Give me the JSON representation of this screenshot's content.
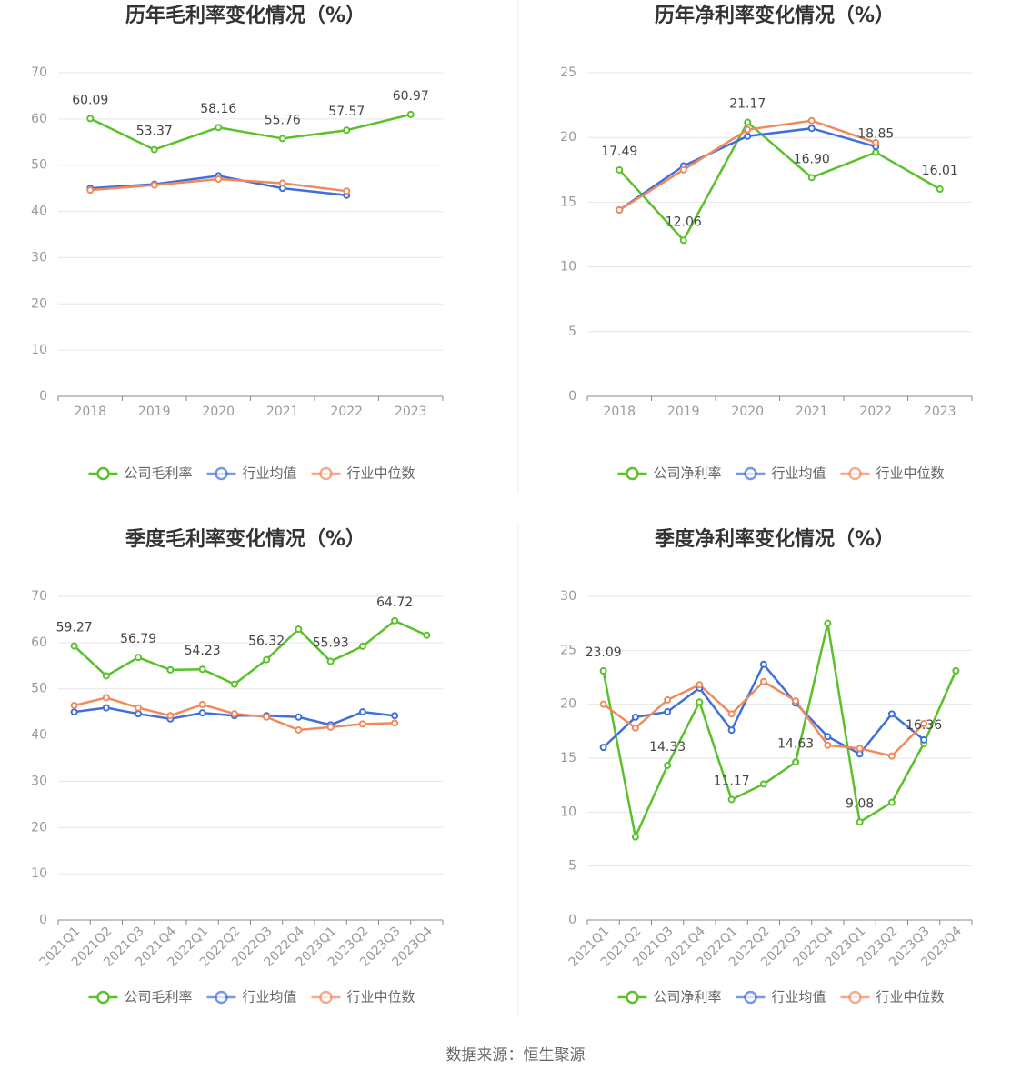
{
  "chart_data": [
    {
      "type": "line",
      "title": "历年毛利率变化情况（%）",
      "categories": [
        "2018",
        "2019",
        "2020",
        "2021",
        "2022",
        "2023"
      ],
      "ylim": [
        0,
        70
      ],
      "yticks": [
        0,
        10,
        20,
        30,
        40,
        50,
        60,
        70
      ],
      "grid": true,
      "series": [
        {
          "name": "公司毛利率",
          "color": "#5ac12b",
          "values": [
            60.09,
            53.37,
            58.16,
            55.76,
            57.57,
            60.97
          ]
        },
        {
          "name": "行业均值",
          "color": "#3e6fdc",
          "values": [
            45.0,
            45.9,
            47.7,
            45.0,
            43.5,
            null
          ]
        },
        {
          "name": "行业中位数",
          "color": "#f08a5d",
          "values": [
            44.6,
            45.7,
            47.0,
            46.1,
            44.4,
            null
          ]
        }
      ]
    },
    {
      "type": "line",
      "title": "历年净利率变化情况（%）",
      "categories": [
        "2018",
        "2019",
        "2020",
        "2021",
        "2022",
        "2023"
      ],
      "ylim": [
        0,
        25
      ],
      "yticks": [
        0,
        5,
        10,
        15,
        20,
        25
      ],
      "grid": true,
      "series": [
        {
          "name": "公司净利率",
          "color": "#5ac12b",
          "values": [
            17.49,
            12.06,
            21.17,
            16.9,
            18.85,
            16.01
          ],
          "value_labels": [
            "17.49",
            "12.06",
            "21.17",
            "16.90",
            "18.85",
            "16.01"
          ]
        },
        {
          "name": "行业均值",
          "color": "#3e6fdc",
          "values": [
            14.4,
            17.8,
            20.1,
            20.7,
            19.3,
            null
          ]
        },
        {
          "name": "行业中位数",
          "color": "#f08a5d",
          "values": [
            14.4,
            17.5,
            20.6,
            21.3,
            19.6,
            null
          ]
        }
      ]
    },
    {
      "type": "line",
      "title": "季度毛利率变化情况（%）",
      "categories": [
        "2021Q1",
        "2021Q2",
        "2021Q3",
        "2021Q4",
        "2022Q1",
        "2022Q2",
        "2022Q3",
        "2022Q4",
        "2023Q1",
        "2023Q2",
        "2023Q3",
        "2023Q4"
      ],
      "ylim": [
        0,
        70
      ],
      "yticks": [
        0,
        10,
        20,
        30,
        40,
        50,
        60,
        70
      ],
      "grid": true,
      "series": [
        {
          "name": "公司毛利率",
          "color": "#5ac12b",
          "values": [
            59.27,
            52.8,
            56.79,
            54.1,
            54.23,
            51.0,
            56.32,
            62.9,
            55.93,
            59.2,
            64.72,
            61.6
          ],
          "value_labels": [
            "59.27",
            null,
            "56.79",
            null,
            "54.23",
            null,
            "56.32",
            null,
            "55.93",
            null,
            "64.72",
            null
          ]
        },
        {
          "name": "行业均值",
          "color": "#3e6fdc",
          "values": [
            45.0,
            45.9,
            44.6,
            43.5,
            44.8,
            44.2,
            44.2,
            43.9,
            42.2,
            45.0,
            44.2,
            null
          ]
        },
        {
          "name": "行业中位数",
          "color": "#f08a5d",
          "values": [
            46.4,
            48.1,
            45.9,
            44.2,
            46.6,
            44.6,
            43.9,
            41.1,
            41.7,
            42.4,
            42.6,
            null
          ]
        }
      ]
    },
    {
      "type": "line",
      "title": "季度净利率变化情况（%）",
      "categories": [
        "2021Q1",
        "2021Q2",
        "2021Q3",
        "2021Q4",
        "2022Q1",
        "2022Q2",
        "2022Q3",
        "2022Q4",
        "2023Q1",
        "2023Q2",
        "2023Q3",
        "2023Q4"
      ],
      "ylim": [
        0,
        30
      ],
      "yticks": [
        0,
        5,
        10,
        15,
        20,
        25,
        30
      ],
      "grid": true,
      "series": [
        {
          "name": "公司净利率",
          "color": "#5ac12b",
          "values": [
            23.09,
            7.7,
            14.33,
            20.2,
            11.17,
            12.6,
            14.63,
            27.5,
            9.08,
            10.9,
            16.36,
            23.1
          ],
          "value_labels": [
            "23.09",
            null,
            "14.33",
            null,
            "11.17",
            null,
            "14.63",
            null,
            "9.08",
            null,
            "16.36",
            null
          ]
        },
        {
          "name": "行业均值",
          "color": "#3e6fdc",
          "values": [
            16.0,
            18.8,
            19.3,
            21.5,
            17.6,
            23.7,
            20.1,
            17.0,
            15.4,
            19.1,
            16.7,
            null
          ]
        },
        {
          "name": "行业中位数",
          "color": "#f08a5d",
          "values": [
            20.0,
            17.8,
            20.4,
            21.8,
            19.1,
            22.1,
            20.3,
            16.2,
            15.9,
            15.2,
            18.2,
            null
          ]
        }
      ]
    }
  ],
  "source": "数据来源：恒生聚源"
}
